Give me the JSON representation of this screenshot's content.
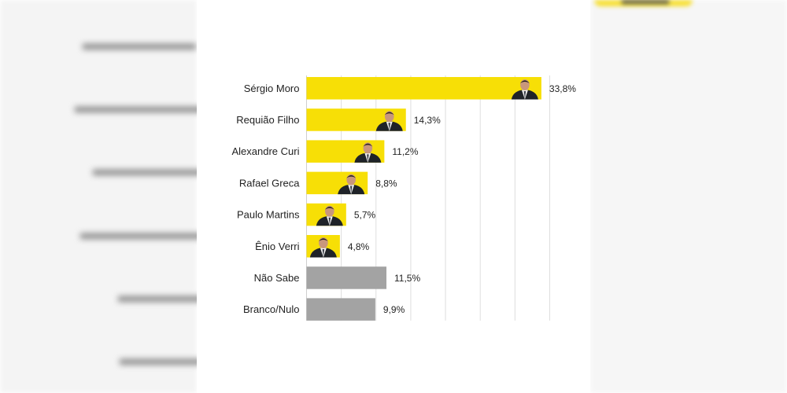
{
  "chart_data": {
    "type": "bar",
    "orientation": "horizontal",
    "categories": [
      "Sérgio Moro",
      "Requião Filho",
      "Alexandre Curi",
      "Rafael Greca",
      "Paulo Martins",
      "Ênio Verri",
      "Não Sabe",
      "Branco/Nulo"
    ],
    "values": [
      33.8,
      14.3,
      11.2,
      8.8,
      5.7,
      4.8,
      11.5,
      9.9
    ],
    "value_labels": [
      "33,8%",
      "14,3%",
      "11,2%",
      "8,8%",
      "5,7%",
      "4,8%",
      "11,5%",
      "9,9%"
    ],
    "unit": "%",
    "xlim": [
      0,
      35
    ],
    "grid": true,
    "colors": [
      "#f7df06",
      "#f7df06",
      "#f7df06",
      "#f7df06",
      "#f7df06",
      "#f7df06",
      "#a3a3a3",
      "#a3a3a3"
    ],
    "candidate_photos": [
      true,
      true,
      true,
      true,
      true,
      true,
      false,
      false
    ]
  }
}
